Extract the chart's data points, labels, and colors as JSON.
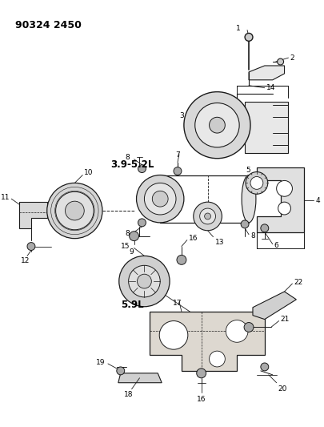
{
  "title": "90324 2450",
  "bg": "#ffffff",
  "lc": "#1a1a1a",
  "label_39_52": "3.9-5.2L",
  "label_59": "5.9L",
  "figsize": [
    4.06,
    5.33
  ],
  "dpi": 100
}
